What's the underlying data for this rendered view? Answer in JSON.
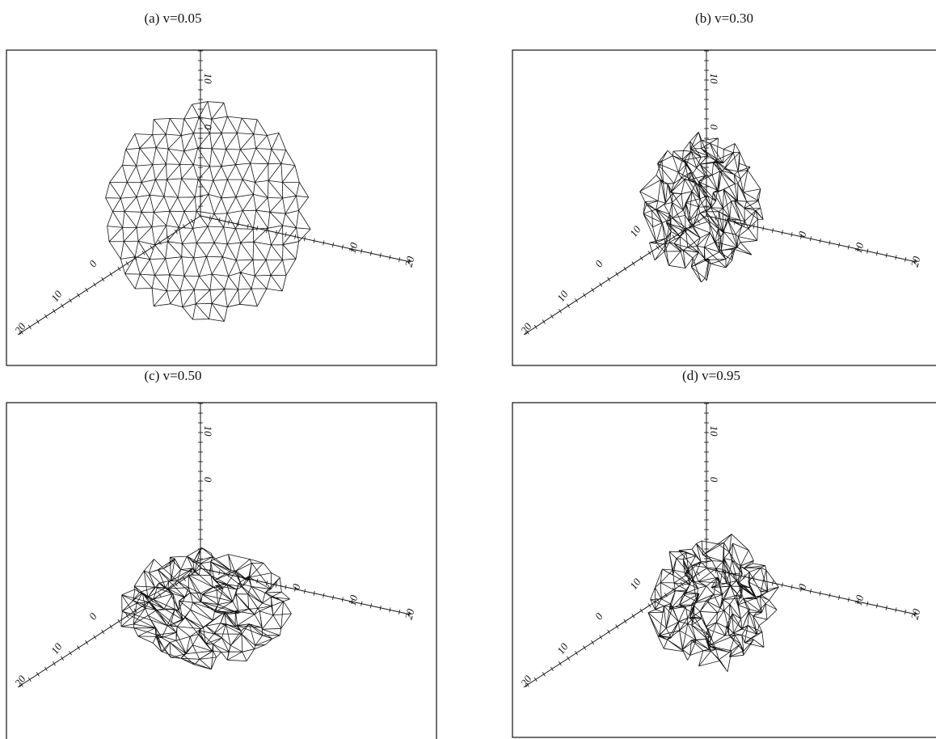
{
  "panels": [
    {
      "label": "(a) v=0.05",
      "axes": {
        "vertical": [
          "10",
          "0"
        ],
        "right": [
          "10",
          "20"
        ],
        "left": [
          "0",
          "10",
          "20"
        ]
      }
    },
    {
      "label": "(b)  v=0.30",
      "axes": {
        "vertical": [
          "10",
          "0"
        ],
        "right": [
          "0",
          "10",
          "20"
        ],
        "left": [
          "10",
          "0",
          "10",
          "20"
        ]
      }
    },
    {
      "label": "(c) v=0.50",
      "axes": {
        "vertical": [
          "10",
          "0"
        ],
        "right": [
          "0",
          "10",
          "20"
        ],
        "left": [
          "0",
          "10",
          "20"
        ]
      }
    },
    {
      "label": "(d)  v=0.95",
      "axes": {
        "vertical": [
          "10",
          "0"
        ],
        "right": [
          "0",
          "10",
          "20"
        ],
        "left": [
          "10",
          "0",
          "10",
          "20"
        ]
      }
    }
  ]
}
